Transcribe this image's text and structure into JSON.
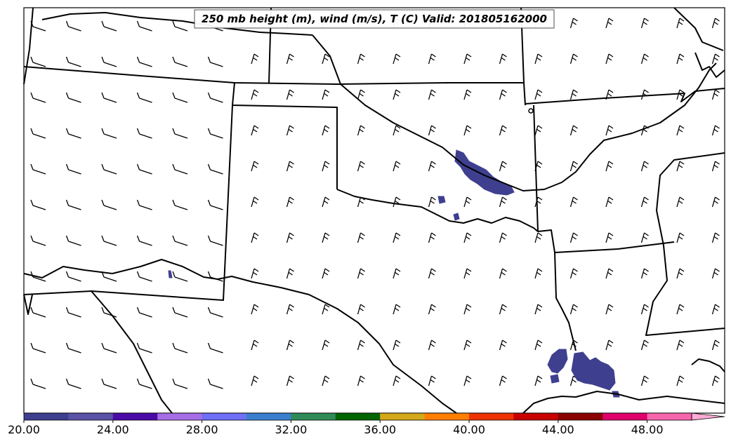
{
  "title": "250 mb height (m), wind (m/s), T (C) Valid: 201805162000",
  "colorbar": {
    "labels": [
      "20.00",
      "24.00",
      "28.00",
      "32.00",
      "36.00",
      "40.00",
      "44.00",
      "48.00"
    ],
    "colors": [
      "#3f3f8f",
      "#5a52a6",
      "#4b0ba8",
      "#a56ee6",
      "#6f6ff7",
      "#3a7fcf",
      "#2e8b57",
      "#006400",
      "#d4a81a",
      "#ff7f00",
      "#ee3300",
      "#c90000",
      "#8b0000",
      "#e0006d",
      "#f766ad",
      "#ffaad4"
    ]
  },
  "field_colors": {
    "temperature_patch": "#3f3f8f",
    "boundaries": "#000000",
    "barbs": "#000000"
  }
}
